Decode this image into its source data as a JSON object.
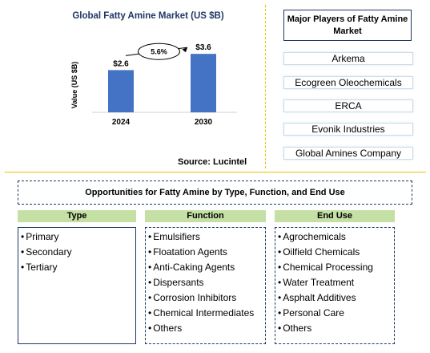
{
  "chart_data": {
    "type": "bar",
    "title": "Global Fatty Amine Market (US $B)",
    "ylabel": "Value (US $B)",
    "categories": [
      "2024",
      "2030"
    ],
    "values": [
      2.6,
      3.6
    ],
    "data_labels": [
      "$2.6",
      "$3.6"
    ],
    "ylim": [
      0,
      4.2
    ],
    "grid": false,
    "annotation": "5.6%",
    "bar_color": "#4472c4"
  },
  "source": "Source: Lucintel",
  "players": {
    "title": "Major Players of Fatty Amine Market",
    "items": [
      "Arkema",
      "Ecogreen Oleochemicals",
      "ERCA",
      "Evonik Industries",
      "Global Amines Company"
    ]
  },
  "opportunities": {
    "title": "Opportunities for Fatty Amine by Type, Function, and End Use",
    "bullet": "•",
    "columns": [
      {
        "header": "Type",
        "items": [
          "Primary",
          "Secondary",
          "Tertiary"
        ]
      },
      {
        "header": "Function",
        "items": [
          "Emulsifiers",
          "Floatation Agents",
          "Anti-Caking Agents",
          "Dispersants",
          "Corrosion Inhibitors",
          "Chemical Intermediates",
          "Others"
        ]
      },
      {
        "header": "End Use",
        "items": [
          "Agrochemicals",
          "Oilfield Chemicals",
          "Chemical Processing",
          "Water Treatment",
          "Asphalt Additives",
          "Personal Care",
          "Others"
        ]
      }
    ],
    "header_color": "#c5e0a5"
  }
}
